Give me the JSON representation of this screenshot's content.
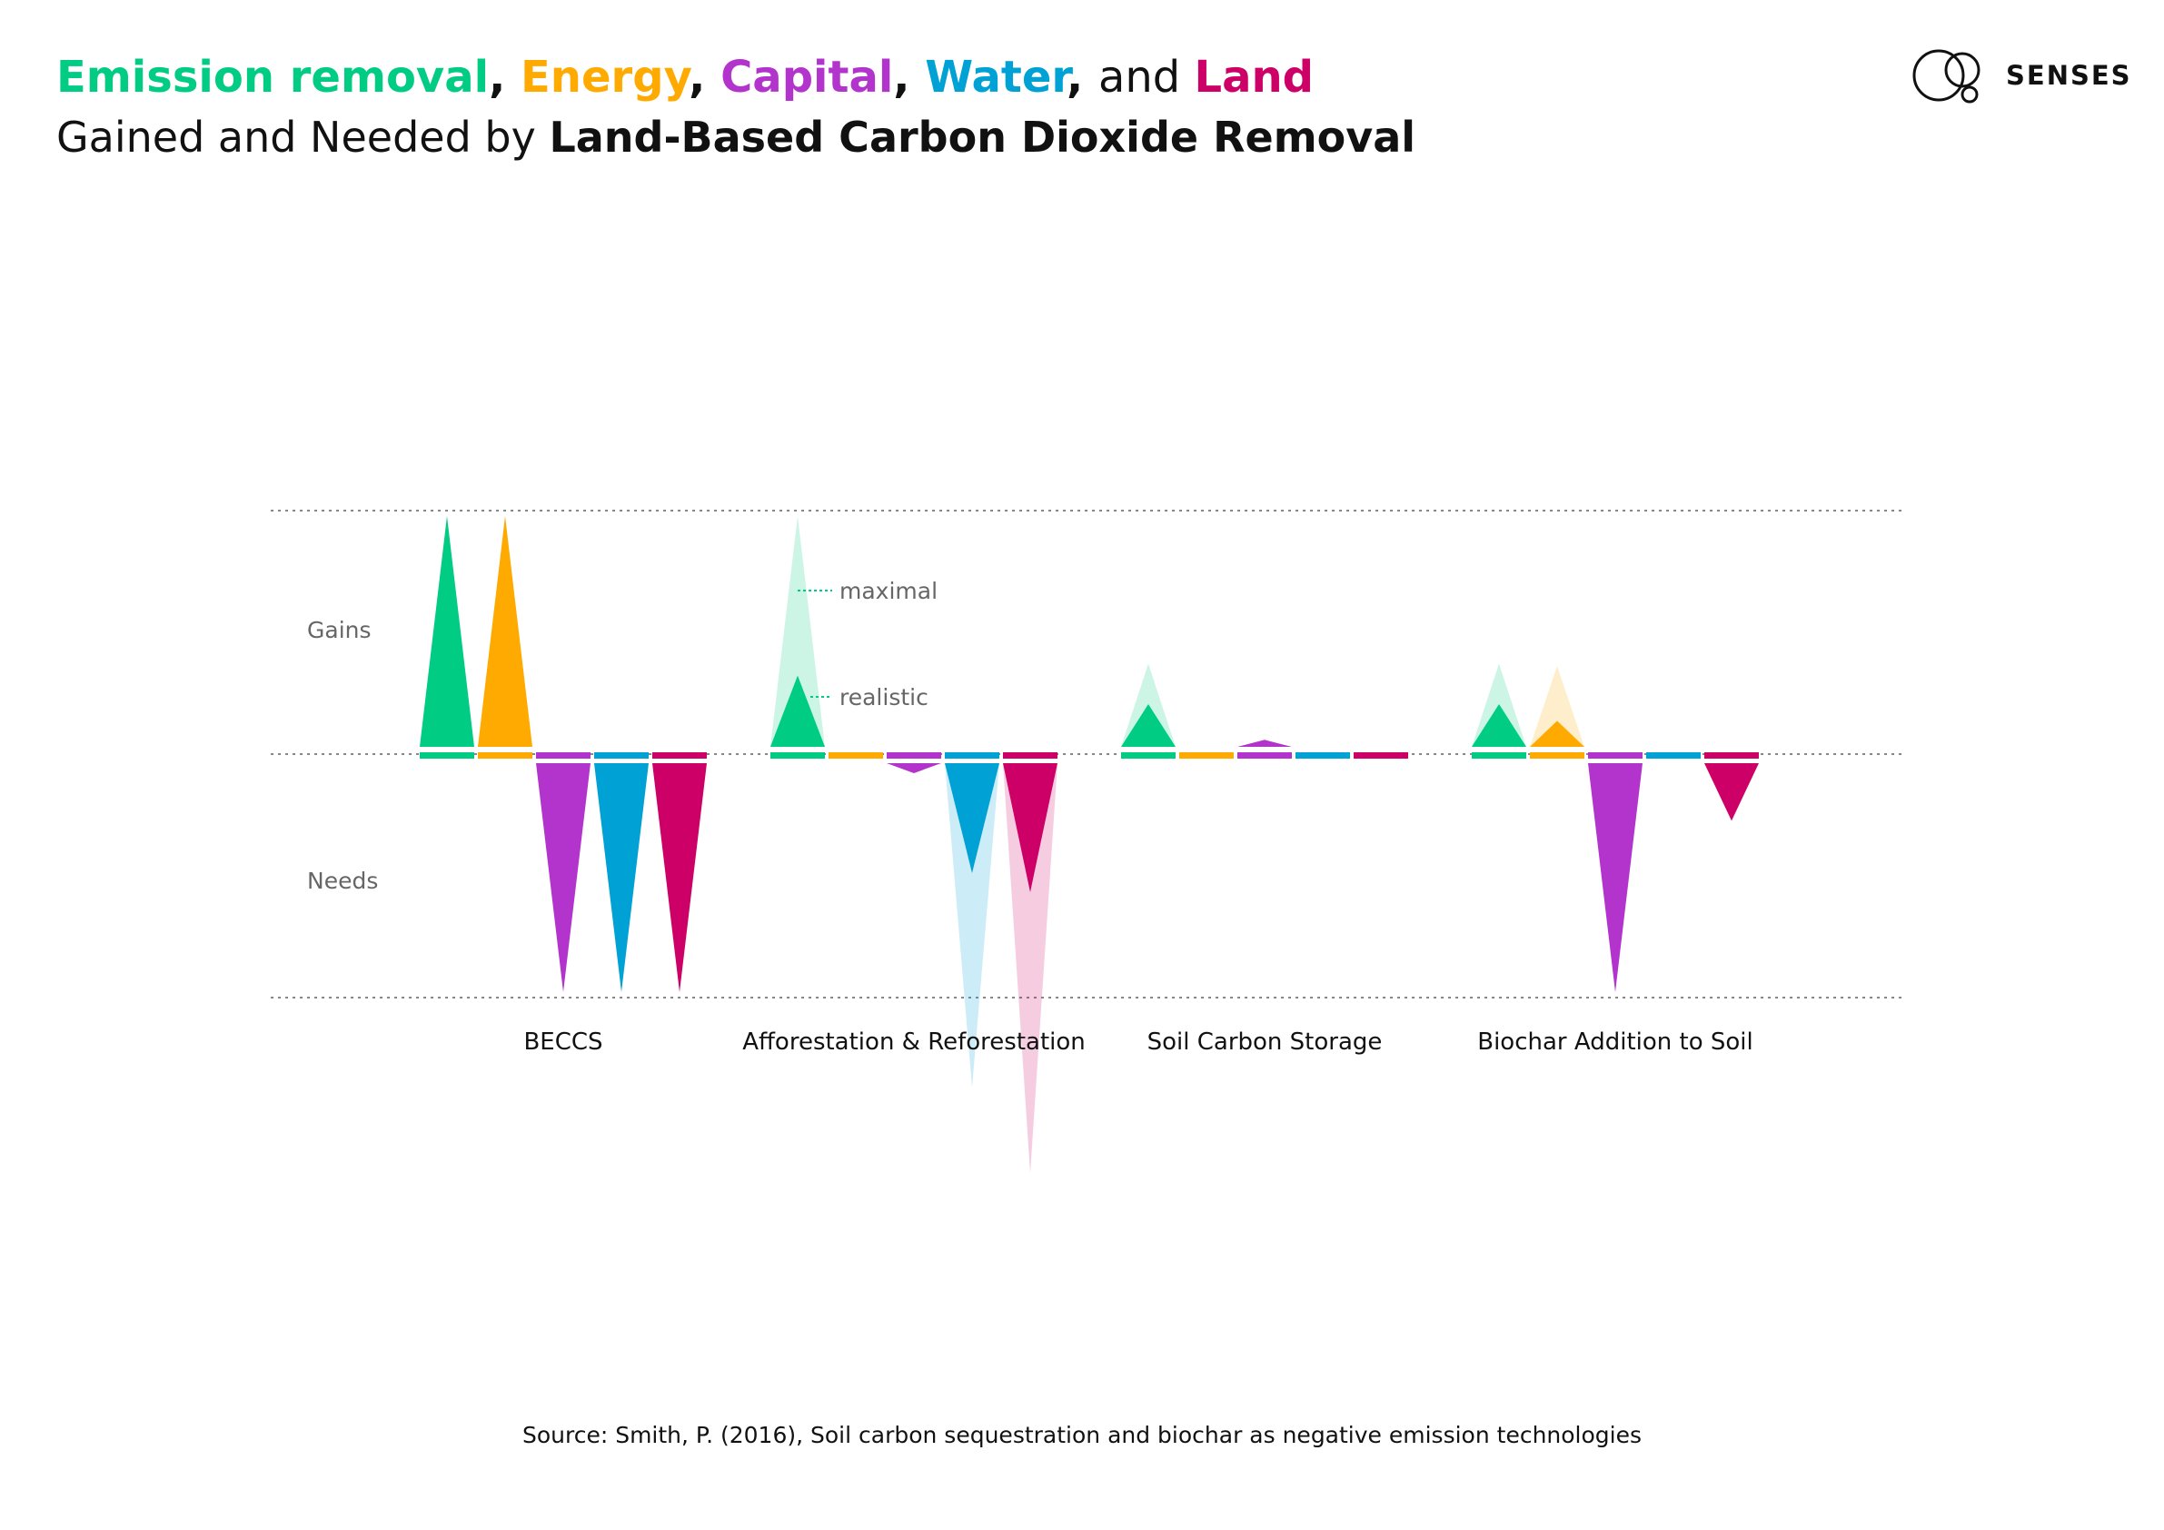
{
  "title": {
    "line1": [
      {
        "text": "Emission removal",
        "color": "#00cc83"
      },
      {
        "text": ", ",
        "color": "#111111"
      },
      {
        "text": "Energy",
        "color": "#ffaa00"
      },
      {
        "text": ", ",
        "color": "#111111"
      },
      {
        "text": "Capital",
        "color": "#b234cc"
      },
      {
        "text": ", ",
        "color": "#111111"
      },
      {
        "text": "Water",
        "color": "#00a2d6"
      },
      {
        "text": ", ",
        "color": "#111111"
      },
      {
        "text": "and ",
        "color": "#111111"
      },
      {
        "text": "Land",
        "color": "#cc0066"
      }
    ],
    "line2_prefix": "Gained and Needed by ",
    "line2_bold": "Land-Based Carbon Dioxide Removal"
  },
  "logo": {
    "text": "SENSES",
    "icon": "overlapping-circles-icon"
  },
  "source": "Source: Smith, P. (2016), Soil carbon sequestration and biochar as negative emission technologies",
  "chart_data": {
    "type": "bar",
    "categories": [
      "BECCS",
      "Afforestation & Reforestation",
      "Soil Carbon Storage",
      "Biochar Addition to Soil"
    ],
    "row_labels": {
      "gains": "Gains",
      "needs": "Needs"
    },
    "annotations": {
      "maximal": "maximal",
      "realistic": "realistic"
    },
    "ylim": [
      -1,
      1
    ],
    "series": [
      {
        "name": "Emission removal",
        "color": "#00cc83",
        "realistic": [
          1.0,
          0.33,
          0.21,
          0.21
        ],
        "maximal": [
          1.0,
          1.0,
          0.38,
          0.38
        ]
      },
      {
        "name": "Energy",
        "color": "#ffaa00",
        "realistic": [
          1.0,
          0.0,
          0.0,
          0.14
        ],
        "maximal": [
          1.0,
          0.0,
          0.0,
          0.37
        ]
      },
      {
        "name": "Capital",
        "color": "#b234cc",
        "realistic": [
          -1.0,
          -0.08,
          0.06,
          -1.0
        ],
        "maximal": [
          -1.0,
          -0.08,
          0.06,
          -1.0
        ]
      },
      {
        "name": "Water",
        "color": "#00a2d6",
        "realistic": [
          -1.0,
          -0.5,
          0.0,
          0.0
        ],
        "maximal": [
          -1.0,
          -1.4,
          0.0,
          0.0
        ]
      },
      {
        "name": "Land",
        "color": "#cc0066",
        "realistic": [
          -1.0,
          -0.58,
          0.0,
          -0.28
        ],
        "maximal": [
          -1.0,
          -1.76,
          0.0,
          -0.28
        ]
      }
    ]
  }
}
